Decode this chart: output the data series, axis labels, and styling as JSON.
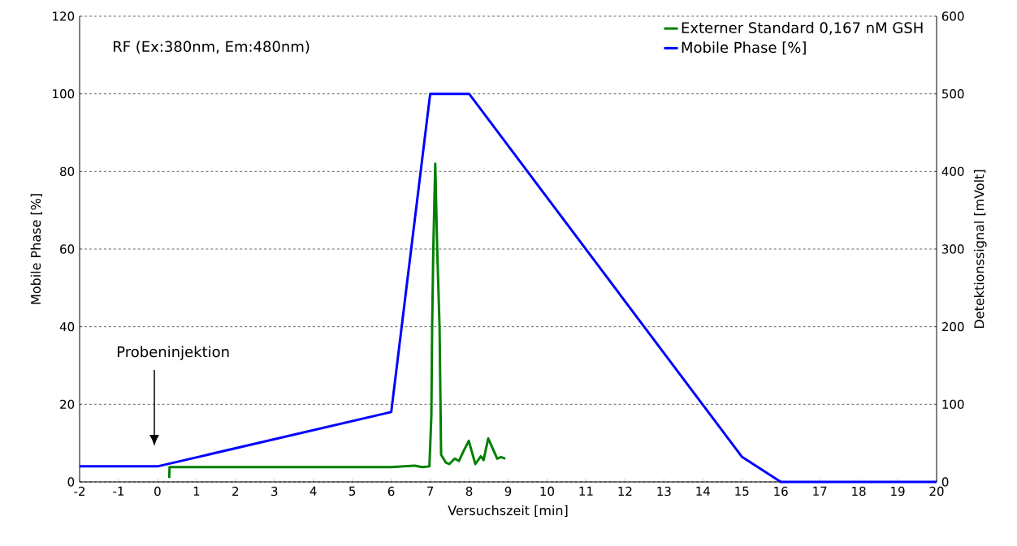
{
  "chart_data": {
    "type": "line",
    "xlabel": "Versuchszeit [min]",
    "ylabel": "Mobile Phase [%]",
    "y2label": "Detektionssignal [mVolt]",
    "xlim": [
      -2,
      20
    ],
    "xticks": [
      -2,
      -1,
      0,
      1,
      2,
      3,
      4,
      5,
      6,
      7,
      8,
      9,
      10,
      11,
      12,
      13,
      14,
      15,
      16,
      17,
      18,
      19,
      20
    ],
    "ylim": [
      0,
      120
    ],
    "yticks": [
      0,
      20,
      40,
      60,
      80,
      100,
      120
    ],
    "y2lim": [
      0,
      600
    ],
    "y2ticks": [
      0,
      100,
      200,
      300,
      400,
      500,
      600
    ],
    "grid": "y",
    "legend": "top right",
    "annotations": [
      "RF (Ex:380nm, Em:480nm)",
      "Probeninjektion"
    ],
    "series": [
      {
        "name": "Externer Standard 0,167 nM GSH",
        "color": "#008000",
        "axis": "y2",
        "x": [
          0.3,
          0.31,
          1.5,
          3,
          6,
          6.6,
          6.8,
          6.98,
          7.03,
          7.05,
          7.08,
          7.13,
          7.18,
          7.24,
          7.28,
          7.4,
          7.49,
          7.63,
          7.74,
          7.84,
          7.99,
          8.16,
          8.3,
          8.37,
          8.49,
          8.72,
          8.82,
          8.93
        ],
        "values": [
          5,
          19,
          19,
          19,
          19,
          21,
          19,
          20,
          85,
          200,
          300,
          410,
          300,
          200,
          35,
          25,
          23,
          30,
          27,
          38,
          53,
          23,
          33,
          28,
          56,
          30,
          32,
          30
        ]
      },
      {
        "name": "Mobile Phase [%]",
        "color": "#0000ff",
        "x": [
          -2,
          0,
          6,
          7,
          8,
          15,
          16,
          20
        ],
        "values": [
          4,
          4,
          18,
          100,
          100,
          6.5,
          0,
          0
        ]
      }
    ]
  }
}
